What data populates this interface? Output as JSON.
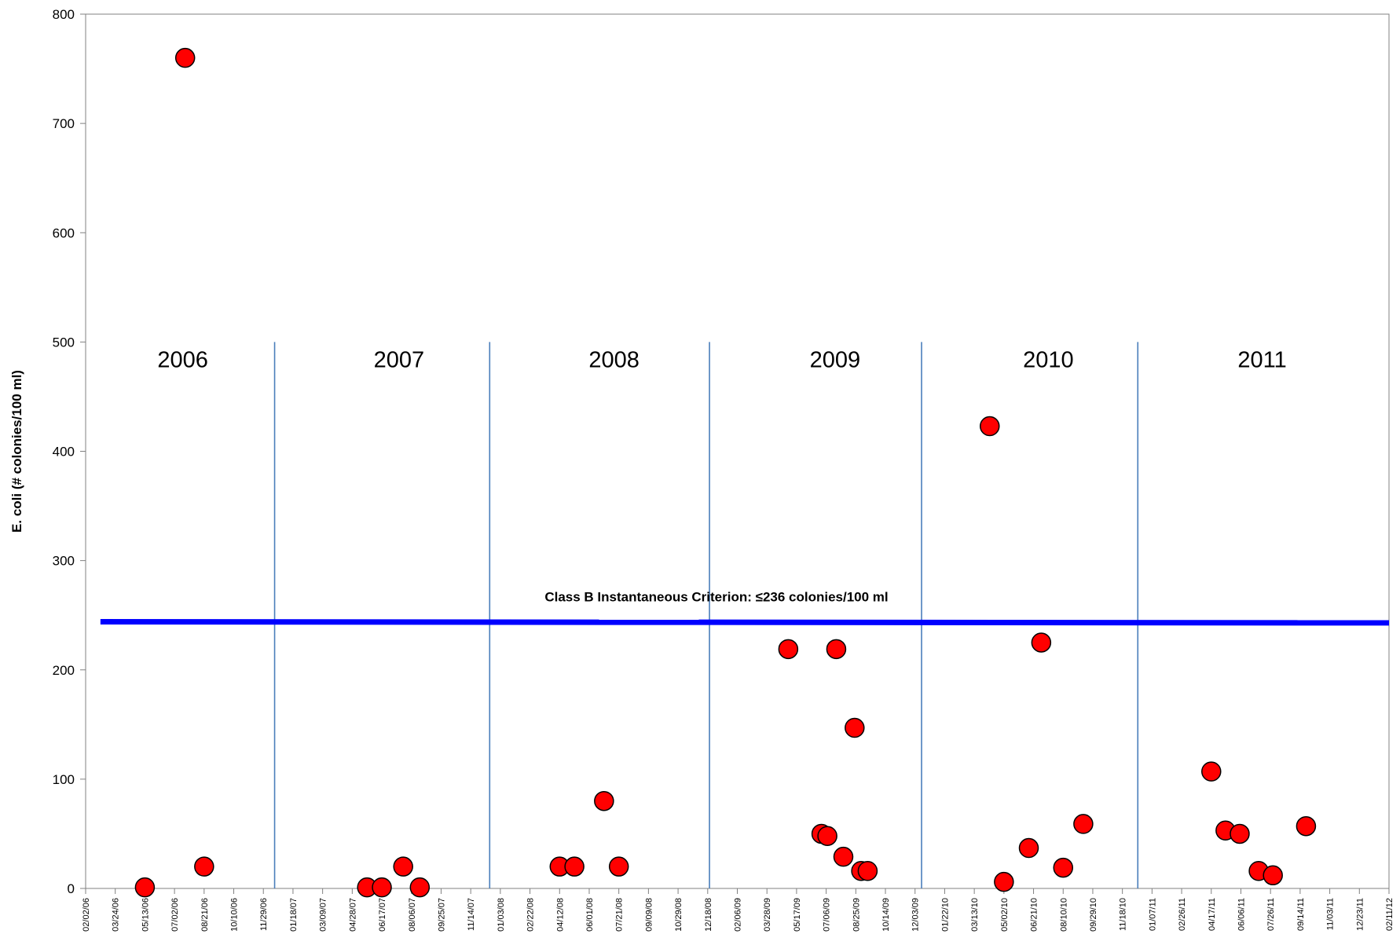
{
  "chart_data": {
    "type": "scatter",
    "title": "",
    "xlabel": "",
    "ylabel": "E. coli (# colonies/100 ml)",
    "ylim": [
      0,
      800
    ],
    "yticks": [
      0,
      100,
      200,
      300,
      400,
      500,
      600,
      700,
      800
    ],
    "xlim": [
      "2006-02-02",
      "2012-02-11"
    ],
    "x_tick_labels": [
      "02/02/06",
      "03/24/06",
      "05/13/06",
      "07/02/06",
      "08/21/06",
      "10/10/06",
      "11/29/06",
      "01/18/07",
      "03/09/07",
      "04/28/07",
      "06/17/07",
      "08/06/07",
      "09/25/07",
      "11/14/07",
      "01/03/08",
      "02/22/08",
      "04/12/08",
      "06/01/08",
      "07/21/08",
      "09/09/08",
      "10/29/08",
      "12/18/08",
      "02/06/09",
      "03/28/09",
      "05/17/09",
      "07/06/09",
      "08/25/09",
      "10/14/09",
      "12/03/09",
      "01/22/10",
      "03/13/10",
      "05/02/10",
      "06/21/10",
      "08/10/10",
      "09/29/10",
      "11/18/10",
      "01/07/11",
      "02/26/11",
      "04/17/11",
      "06/06/11",
      "07/26/11",
      "09/14/11",
      "11/03/11",
      "12/23/11",
      "02/11/12"
    ],
    "grid": false,
    "marker_color": "#ff0000",
    "marker_edge_color": "#000000",
    "points": [
      {
        "x": "2006-05-13",
        "y": 1
      },
      {
        "x": "2006-07-20",
        "y": 760
      },
      {
        "x": "2006-08-21",
        "y": 20
      },
      {
        "x": "2007-05-23",
        "y": 1
      },
      {
        "x": "2007-06-17",
        "y": 1
      },
      {
        "x": "2007-07-23",
        "y": 20
      },
      {
        "x": "2007-08-20",
        "y": 1
      },
      {
        "x": "2008-04-12",
        "y": 20
      },
      {
        "x": "2008-05-07",
        "y": 20
      },
      {
        "x": "2008-06-26",
        "y": 80
      },
      {
        "x": "2008-07-21",
        "y": 20
      },
      {
        "x": "2009-05-03",
        "y": 219
      },
      {
        "x": "2009-06-28",
        "y": 50
      },
      {
        "x": "2009-07-08",
        "y": 48
      },
      {
        "x": "2009-07-23",
        "y": 219
      },
      {
        "x": "2009-08-04",
        "y": 29
      },
      {
        "x": "2009-08-23",
        "y": 147
      },
      {
        "x": "2009-09-03",
        "y": 16
      },
      {
        "x": "2009-09-14",
        "y": 16
      },
      {
        "x": "2010-04-08",
        "y": 423
      },
      {
        "x": "2010-05-02",
        "y": 6
      },
      {
        "x": "2010-06-13",
        "y": 37
      },
      {
        "x": "2010-07-04",
        "y": 225
      },
      {
        "x": "2010-08-10",
        "y": 19
      },
      {
        "x": "2010-09-13",
        "y": 59
      },
      {
        "x": "2011-04-17",
        "y": 107
      },
      {
        "x": "2011-05-11",
        "y": 53
      },
      {
        "x": "2011-06-04",
        "y": 50
      },
      {
        "x": "2011-07-06",
        "y": 16
      },
      {
        "x": "2011-07-30",
        "y": 12
      },
      {
        "x": "2011-09-24",
        "y": 57
      }
    ],
    "criterion_line": {
      "label": "Class B Instantaneous Criterion:  ≤236 colonies/100 ml",
      "y_start": 244,
      "y_end": 243,
      "x_start": "2006-02-27",
      "x_end": "2012-02-11",
      "color": "#0000ff"
    },
    "year_dividers": {
      "dates": [
        "2006-12-18",
        "2007-12-16",
        "2008-12-21",
        "2009-12-14",
        "2010-12-14"
      ],
      "color": "#4a7ebb"
    },
    "year_labels": [
      "2006",
      "2007",
      "2008",
      "2009",
      "2010",
      "2011"
    ],
    "year_label_positions": [
      "2006-07-16",
      "2007-07-16",
      "2008-07-13",
      "2009-07-21",
      "2010-07-16",
      "2011-07-12"
    ],
    "year_label_y": 500
  }
}
